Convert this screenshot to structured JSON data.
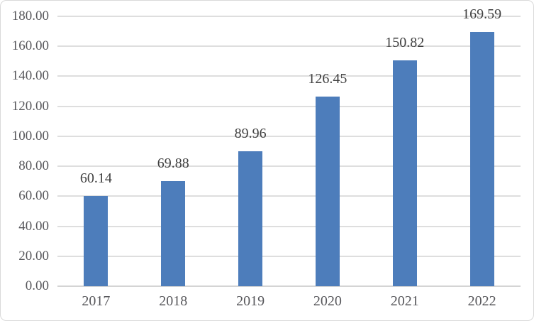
{
  "chart_data": {
    "type": "bar",
    "title": "",
    "xlabel": "",
    "ylabel": "",
    "categories": [
      "2017",
      "2018",
      "2019",
      "2020",
      "2021",
      "2022"
    ],
    "values": [
      60.14,
      69.88,
      89.96,
      126.45,
      150.82,
      169.59
    ],
    "value_labels": [
      "60.14",
      "69.88",
      "89.96",
      "126.45",
      "150.82",
      "169.59"
    ],
    "ylim": [
      0,
      180
    ],
    "y_tick_interval": 20,
    "y_tick_labels": [
      "0.00",
      "20.00",
      "40.00",
      "60.00",
      "80.00",
      "100.00",
      "120.00",
      "140.00",
      "160.00",
      "180.00"
    ],
    "grid": true,
    "legend": false,
    "colors": {
      "bar": "#4d7dbb",
      "gridline": "#dedede",
      "axis_line": "#d4d4d4",
      "frame_border": "#d9d9d9",
      "background": "#ffffff",
      "data_label_text": "#404040",
      "tick_label_text": "#58585c"
    }
  }
}
